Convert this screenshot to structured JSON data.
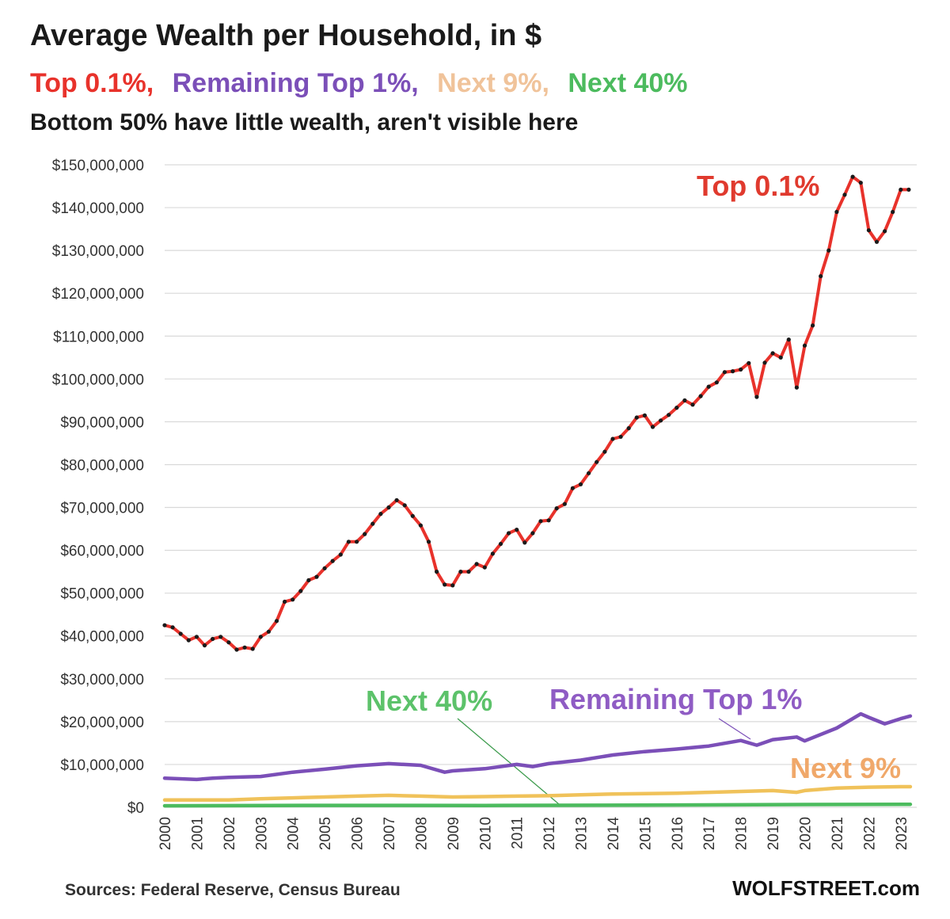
{
  "header": {
    "title": "Average Wealth per Household, in $",
    "subtitle_parts": [
      {
        "text": "Top 0.1%,",
        "color": "#e8322b"
      },
      {
        "text": "Remaining Top  1%,",
        "color": "#7b4fb8"
      },
      {
        "text": "Next 9%,",
        "color": "#f0c39a"
      },
      {
        "text": "Next 40%",
        "color": "#4cbb5e"
      }
    ],
    "note": "Bottom 50% have little wealth, aren't visible here"
  },
  "footer": {
    "source": "Sources: Federal Reserve, Census Bureau",
    "brand": "WOLFSTREET.com"
  },
  "chart_data": {
    "type": "line",
    "title": "Average Wealth per Household, in $",
    "xlabel": "",
    "ylabel": "",
    "ylim": [
      0,
      150000000
    ],
    "xlim": [
      2000,
      2023.5
    ],
    "grid": true,
    "y_ticks": [
      0,
      10000000,
      20000000,
      30000000,
      40000000,
      50000000,
      60000000,
      70000000,
      80000000,
      90000000,
      100000000,
      110000000,
      120000000,
      130000000,
      140000000,
      150000000
    ],
    "y_tick_labels": [
      "$0",
      "$10,000,000",
      "$20,000,000",
      "$30,000,000",
      "$40,000,000",
      "$50,000,000",
      "$60,000,000",
      "$70,000,000",
      "$80,000,000",
      "$90,000,000",
      "$100,000,000",
      "$110,000,000",
      "$120,000,000",
      "$130,000,000",
      "$140,000,000",
      "$150,000,000"
    ],
    "x_ticks": [
      2000,
      2001,
      2002,
      2003,
      2004,
      2005,
      2006,
      2007,
      2008,
      2009,
      2010,
      2011,
      2012,
      2013,
      2014,
      2015,
      2016,
      2017,
      2018,
      2019,
      2020,
      2021,
      2022,
      2023
    ],
    "x_tick_labels": [
      "2000",
      "2001",
      "2002",
      "2003",
      "2004",
      "2005",
      "2006",
      "2007",
      "2008",
      "2009",
      "2010",
      "2011",
      "2012",
      "2013",
      "2014",
      "2015",
      "2016",
      "2017",
      "2018",
      "2019",
      "2020",
      "2021",
      "2022",
      "2023"
    ],
    "annotations": [
      {
        "text": "Top 0.1%",
        "series": "Top 0.1%",
        "color": "#e03a2e"
      },
      {
        "text": "Next 40%",
        "series": "Next 40%",
        "color": "#5cc26a"
      },
      {
        "text": "Remaining Top 1%",
        "series": "Remaining Top 1%",
        "color": "#8f5cc4"
      },
      {
        "text": "Next 9%",
        "series": "Next 9%",
        "color": "#f0a86a"
      }
    ],
    "series": [
      {
        "name": "Top 0.1%",
        "color": "#e8322b",
        "markers": true,
        "x": [
          2000.0,
          2000.25,
          2000.5,
          2000.75,
          2001.0,
          2001.25,
          2001.5,
          2001.75,
          2002.0,
          2002.25,
          2002.5,
          2002.75,
          2003.0,
          2003.25,
          2003.5,
          2003.75,
          2004.0,
          2004.25,
          2004.5,
          2004.75,
          2005.0,
          2005.25,
          2005.5,
          2005.75,
          2006.0,
          2006.25,
          2006.5,
          2006.75,
          2007.0,
          2007.25,
          2007.5,
          2007.75,
          2008.0,
          2008.25,
          2008.5,
          2008.75,
          2009.0,
          2009.25,
          2009.5,
          2009.75,
          2010.0,
          2010.25,
          2010.5,
          2010.75,
          2011.0,
          2011.25,
          2011.5,
          2011.75,
          2012.0,
          2012.25,
          2012.5,
          2012.75,
          2013.0,
          2013.25,
          2013.5,
          2013.75,
          2014.0,
          2014.25,
          2014.5,
          2014.75,
          2015.0,
          2015.25,
          2015.5,
          2015.75,
          2016.0,
          2016.25,
          2016.5,
          2016.75,
          2017.0,
          2017.25,
          2017.5,
          2017.75,
          2018.0,
          2018.25,
          2018.5,
          2018.75,
          2019.0,
          2019.25,
          2019.5,
          2019.75,
          2020.0,
          2020.25,
          2020.5,
          2020.75,
          2021.0,
          2021.25,
          2021.5,
          2021.75,
          2022.0,
          2022.25,
          2022.5,
          2022.75,
          2023.0,
          2023.25
        ],
        "values": [
          42500000,
          42000000,
          40500000,
          39000000,
          39800000,
          37800000,
          39300000,
          39800000,
          38500000,
          36800000,
          37300000,
          37000000,
          39800000,
          41000000,
          43500000,
          48000000,
          48500000,
          50500000,
          53000000,
          53800000,
          55800000,
          57500000,
          59000000,
          62000000,
          62000000,
          63800000,
          66200000,
          68500000,
          70000000,
          71700000,
          70500000,
          68000000,
          65800000,
          62000000,
          55000000,
          52000000,
          51800000,
          55000000,
          55000000,
          56800000,
          56000000,
          59200000,
          61500000,
          64000000,
          64800000,
          61800000,
          64000000,
          66800000,
          67000000,
          69800000,
          70800000,
          74500000,
          75400000,
          78000000,
          80600000,
          83000000,
          86000000,
          86500000,
          88500000,
          91000000,
          91500000,
          88800000,
          90300000,
          91600000,
          93300000,
          95000000,
          94000000,
          96000000,
          98200000,
          99200000,
          101600000,
          101800000,
          102200000,
          103700000,
          95800000,
          103800000,
          106000000,
          105000000,
          109200000,
          98000000,
          107800000,
          112500000,
          124000000,
          130000000,
          139000000,
          143000000,
          147200000,
          145800000,
          134700000,
          132000000,
          134500000,
          139000000,
          144200000,
          144200000
        ]
      },
      {
        "name": "Remaining Top 1%",
        "color": "#7b4fb8",
        "markers": false,
        "x": [
          2000,
          2001,
          2001.5,
          2002,
          2003,
          2004,
          2005,
          2006,
          2007,
          2008,
          2008.75,
          2009,
          2010,
          2011,
          2011.5,
          2012,
          2013,
          2014,
          2015,
          2016,
          2017,
          2018,
          2018.5,
          2019,
          2019.75,
          2020,
          2021,
          2021.75,
          2022,
          2022.5,
          2023,
          2023.3
        ],
        "values": [
          6800000,
          6500000,
          6800000,
          7000000,
          7200000,
          8200000,
          8900000,
          9700000,
          10200000,
          9800000,
          8200000,
          8500000,
          9000000,
          10000000,
          9500000,
          10200000,
          11000000,
          12200000,
          13000000,
          13600000,
          14300000,
          15600000,
          14500000,
          15800000,
          16400000,
          15500000,
          18500000,
          21800000,
          21000000,
          19500000,
          20700000,
          21300000
        ]
      },
      {
        "name": "Next 9%",
        "color": "#f0c25a",
        "markers": false,
        "x": [
          2000,
          2001,
          2002,
          2003,
          2004,
          2005,
          2006,
          2007,
          2008,
          2009,
          2010,
          2011,
          2012,
          2013,
          2014,
          2015,
          2016,
          2017,
          2018,
          2019,
          2019.75,
          2020,
          2021,
          2022,
          2023,
          2023.3
        ],
        "values": [
          1700000,
          1700000,
          1700000,
          2000000,
          2200000,
          2400000,
          2600000,
          2800000,
          2600000,
          2400000,
          2500000,
          2600000,
          2700000,
          2900000,
          3100000,
          3200000,
          3300000,
          3500000,
          3700000,
          3900000,
          3500000,
          3900000,
          4500000,
          4700000,
          4800000,
          4800000
        ]
      },
      {
        "name": "Next 40%",
        "color": "#4cbb5e",
        "markers": false,
        "x": [
          2000,
          2005,
          2010,
          2015,
          2020,
          2023.3
        ],
        "values": [
          350000,
          450000,
          420000,
          500000,
          650000,
          700000
        ]
      }
    ]
  }
}
